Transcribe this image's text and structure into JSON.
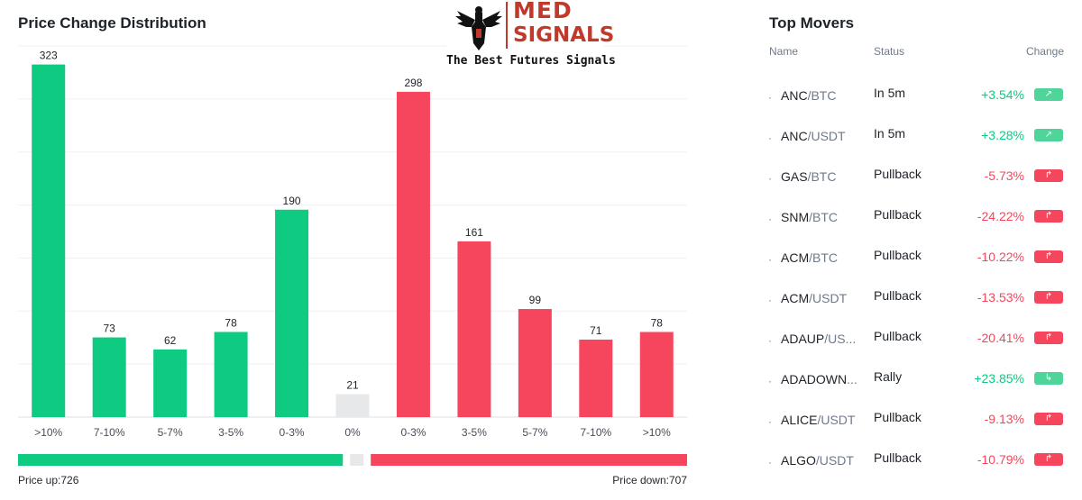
{
  "distribution": {
    "title": "Price Change Distribution",
    "price_up_label": "Price up:726",
    "price_down_label": "Price down:707",
    "colors": {
      "up": "#0ecb81",
      "down": "#f6465d",
      "neutral": "#e6e8ea"
    }
  },
  "chart_data": {
    "type": "bar",
    "title": "Price Change Distribution",
    "categories": [
      ">10%",
      "7-10%",
      "5-7%",
      "3-5%",
      "0-3%",
      "0%",
      "0-3%",
      "3-5%",
      "5-7%",
      "7-10%",
      ">10%"
    ],
    "values": [
      323,
      73,
      62,
      78,
      190,
      21,
      298,
      161,
      99,
      71,
      78
    ],
    "bar_colors": [
      "#0ecb81",
      "#0ecb81",
      "#0ecb81",
      "#0ecb81",
      "#0ecb81",
      "#e6e8ea",
      "#f6465d",
      "#f6465d",
      "#f6465d",
      "#f6465d",
      "#f6465d"
    ],
    "ylim": [
      0,
      340
    ],
    "grid": true,
    "summary": {
      "up": 726,
      "neutral": 21,
      "down": 707
    }
  },
  "logo": {
    "line1": "MED",
    "line2": "SIGNALS",
    "tagline": "The Best Futures Signals"
  },
  "top_movers": {
    "title": "Top Movers",
    "columns": {
      "name": "Name",
      "status": "Status",
      "change": "Change"
    },
    "rows": [
      {
        "base": "ANC",
        "quote": "/BTC",
        "status": "In 5m",
        "change": "+3.54%",
        "direction": "up",
        "icon": "trend-up-icon"
      },
      {
        "base": "ANC",
        "quote": "/USDT",
        "status": "In 5m",
        "change": "+3.28%",
        "direction": "up",
        "icon": "trend-up-icon"
      },
      {
        "base": "GAS",
        "quote": "/BTC",
        "status": "Pullback",
        "change": "-5.73%",
        "direction": "down",
        "icon": "pullback-icon"
      },
      {
        "base": "SNM",
        "quote": "/BTC",
        "status": "Pullback",
        "change": "-24.22%",
        "direction": "down",
        "icon": "pullback-icon"
      },
      {
        "base": "ACM",
        "quote": "/BTC",
        "status": "Pullback",
        "change": "-10.22%",
        "direction": "down",
        "icon": "pullback-icon"
      },
      {
        "base": "ACM",
        "quote": "/USDT",
        "status": "Pullback",
        "change": "-13.53%",
        "direction": "down",
        "icon": "pullback-icon"
      },
      {
        "base": "ADAUP",
        "quote": "/US...",
        "status": "Pullback",
        "change": "-20.41%",
        "direction": "down",
        "icon": "pullback-icon"
      },
      {
        "base": "ADADOWN",
        "quote": "...",
        "status": "Rally",
        "change": "+23.85%",
        "direction": "up",
        "icon": "rally-icon"
      },
      {
        "base": "ALICE",
        "quote": "/USDT",
        "status": "Pullback",
        "change": "-9.13%",
        "direction": "down",
        "icon": "pullback-icon"
      },
      {
        "base": "ALGO",
        "quote": "/USDT",
        "status": "Pullback",
        "change": "-10.79%",
        "direction": "down",
        "icon": "pullback-icon"
      }
    ]
  }
}
